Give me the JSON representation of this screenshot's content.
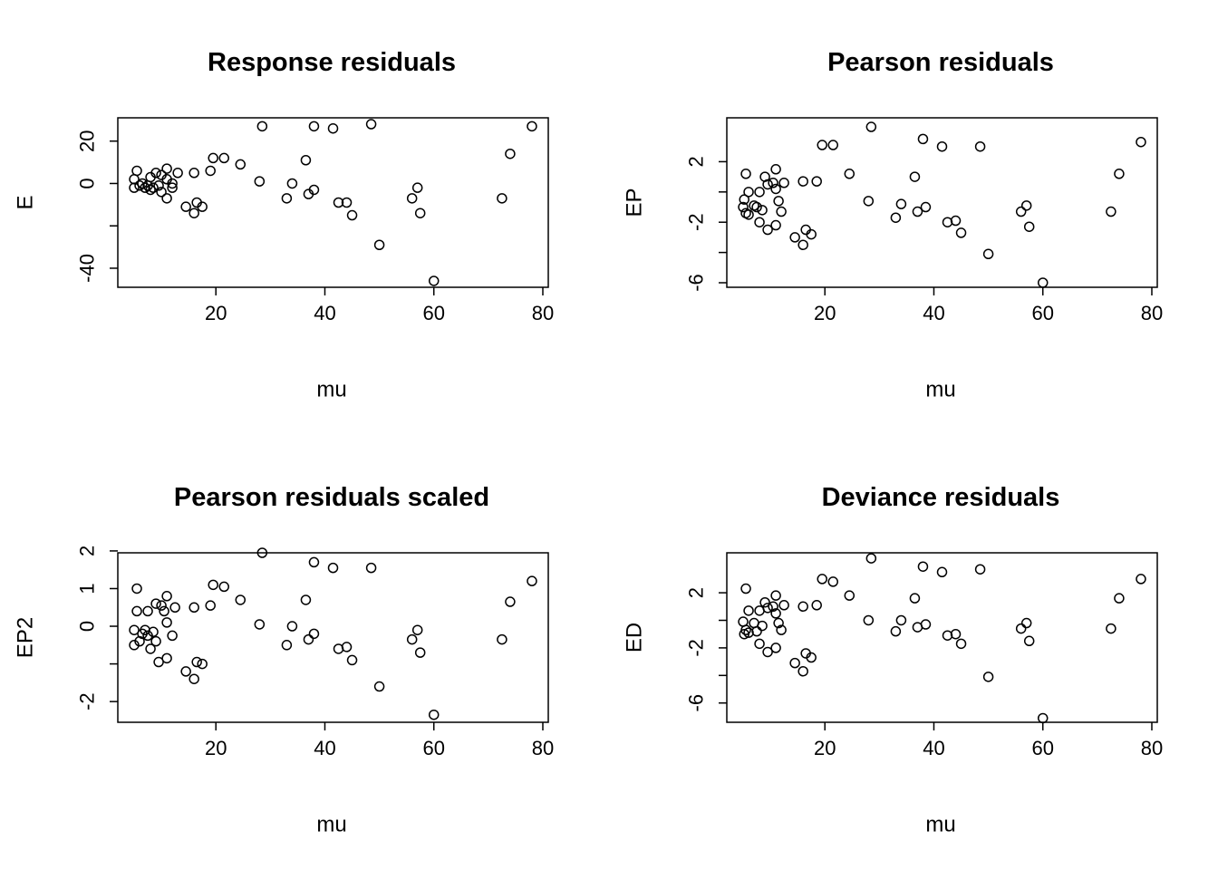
{
  "chart_data": [
    {
      "type": "scatter",
      "title": "Response residuals",
      "xlabel": "mu",
      "ylabel": "E",
      "xlim": [
        2,
        81
      ],
      "ylim": [
        -49,
        31
      ],
      "xticks": [
        20,
        40,
        60,
        80
      ],
      "yticks": [
        -40,
        -20,
        0,
        20
      ],
      "ytick_labels": [
        "-40",
        "",
        "0",
        "20"
      ],
      "points": [
        [
          5,
          -2
        ],
        [
          5.5,
          6
        ],
        [
          5,
          2
        ],
        [
          6,
          -1
        ],
        [
          6.5,
          0
        ],
        [
          7,
          -2
        ],
        [
          7.5,
          -1
        ],
        [
          8,
          3
        ],
        [
          8,
          -3
        ],
        [
          8.5,
          -2
        ],
        [
          9,
          5
        ],
        [
          9.5,
          -1
        ],
        [
          10,
          4
        ],
        [
          10,
          -4
        ],
        [
          11,
          7
        ],
        [
          11,
          2
        ],
        [
          11,
          -7
        ],
        [
          12,
          0
        ],
        [
          12,
          -2
        ],
        [
          13,
          5
        ],
        [
          14.5,
          -11
        ],
        [
          16,
          -14
        ],
        [
          16,
          5
        ],
        [
          16.5,
          -9
        ],
        [
          17.5,
          -11
        ],
        [
          19,
          6
        ],
        [
          19.5,
          12
        ],
        [
          21.5,
          12
        ],
        [
          24.5,
          9
        ],
        [
          28,
          1
        ],
        [
          28.5,
          27
        ],
        [
          33,
          -7
        ],
        [
          34,
          0
        ],
        [
          36.5,
          11
        ],
        [
          37,
          -5
        ],
        [
          38,
          27
        ],
        [
          38,
          -3
        ],
        [
          41.5,
          26
        ],
        [
          42.5,
          -9
        ],
        [
          44,
          -9
        ],
        [
          45,
          -15
        ],
        [
          48.5,
          28
        ],
        [
          50,
          -29
        ],
        [
          56,
          -7
        ],
        [
          57,
          -2
        ],
        [
          57.5,
          -14
        ],
        [
          60,
          -46
        ],
        [
          72.5,
          -7
        ],
        [
          74,
          14
        ],
        [
          78,
          27
        ]
      ]
    },
    {
      "type": "scatter",
      "title": "Pearson residuals",
      "xlabel": "mu",
      "ylabel": "EP",
      "xlim": [
        2,
        81
      ],
      "ylim": [
        -6.3,
        4.9
      ],
      "xticks": [
        20,
        40,
        60,
        80
      ],
      "yticks": [
        -6,
        -4,
        -2,
        0,
        2
      ],
      "ytick_labels": [
        "-6",
        "",
        "-2",
        "",
        "2"
      ],
      "points": [
        [
          5,
          -1
        ],
        [
          5.2,
          -0.5
        ],
        [
          5.5,
          1.2
        ],
        [
          5.5,
          -1.4
        ],
        [
          6,
          0
        ],
        [
          6,
          -1.5
        ],
        [
          7,
          -0.9
        ],
        [
          7.5,
          -1
        ],
        [
          8,
          0
        ],
        [
          8,
          -2
        ],
        [
          8.5,
          -1.2
        ],
        [
          9,
          1
        ],
        [
          9.5,
          -2.5
        ],
        [
          9.5,
          0.5
        ],
        [
          10.5,
          0.6
        ],
        [
          11,
          0.2
        ],
        [
          11,
          -2.2
        ],
        [
          11,
          1.5
        ],
        [
          11.5,
          -0.6
        ],
        [
          12,
          -1.3
        ],
        [
          12.5,
          0.6
        ],
        [
          14.5,
          -3
        ],
        [
          16,
          -3.5
        ],
        [
          16,
          0.7
        ],
        [
          16.5,
          -2.5
        ],
        [
          17.5,
          -2.8
        ],
        [
          18.5,
          0.7
        ],
        [
          19.5,
          3.1
        ],
        [
          21.5,
          3.1
        ],
        [
          24.5,
          1.2
        ],
        [
          28,
          -0.6
        ],
        [
          28.5,
          4.3
        ],
        [
          33,
          -1.7
        ],
        [
          34,
          -0.8
        ],
        [
          36.5,
          1
        ],
        [
          37,
          -1.3
        ],
        [
          38,
          3.5
        ],
        [
          38.5,
          -1
        ],
        [
          41.5,
          3
        ],
        [
          42.5,
          -2
        ],
        [
          44,
          -1.9
        ],
        [
          45,
          -2.7
        ],
        [
          48.5,
          3
        ],
        [
          50,
          -4.1
        ],
        [
          56,
          -1.3
        ],
        [
          57,
          -0.9
        ],
        [
          57.5,
          -2.3
        ],
        [
          60,
          -6
        ],
        [
          72.5,
          -1.3
        ],
        [
          74,
          1.2
        ],
        [
          78,
          3.3
        ]
      ]
    },
    {
      "type": "scatter",
      "title": "Pearson residuals scaled",
      "xlabel": "mu",
      "ylabel": "EP2",
      "xlim": [
        2,
        81
      ],
      "ylim": [
        -2.55,
        1.95
      ],
      "xticks": [
        20,
        40,
        60,
        80
      ],
      "yticks": [
        -2,
        -1,
        0,
        1,
        2
      ],
      "ytick_labels": [
        "-2",
        "",
        "0",
        "1",
        "2"
      ],
      "points": [
        [
          5,
          -0.1
        ],
        [
          5,
          -0.5
        ],
        [
          5.5,
          0.4
        ],
        [
          5.5,
          1
        ],
        [
          6,
          -0.4
        ],
        [
          6.5,
          -0.2
        ],
        [
          7,
          -0.1
        ],
        [
          7.5,
          -0.25
        ],
        [
          7.5,
          0.4
        ],
        [
          8,
          -0.6
        ],
        [
          8.5,
          -0.15
        ],
        [
          9,
          0.6
        ],
        [
          9,
          -0.4
        ],
        [
          9.5,
          -0.95
        ],
        [
          10,
          0.55
        ],
        [
          10.5,
          0.4
        ],
        [
          11,
          0.8
        ],
        [
          11,
          0.1
        ],
        [
          11,
          -0.85
        ],
        [
          12,
          -0.25
        ],
        [
          12.5,
          0.5
        ],
        [
          14.5,
          -1.2
        ],
        [
          16,
          -1.4
        ],
        [
          16,
          0.5
        ],
        [
          16.5,
          -0.95
        ],
        [
          17.5,
          -1
        ],
        [
          19,
          0.55
        ],
        [
          19.5,
          1.1
        ],
        [
          21.5,
          1.05
        ],
        [
          24.5,
          0.7
        ],
        [
          28,
          0.05
        ],
        [
          28.5,
          1.95
        ],
        [
          33,
          -0.5
        ],
        [
          34,
          0
        ],
        [
          36.5,
          0.7
        ],
        [
          37,
          -0.35
        ],
        [
          38,
          1.7
        ],
        [
          38,
          -0.2
        ],
        [
          41.5,
          1.55
        ],
        [
          42.5,
          -0.6
        ],
        [
          44,
          -0.55
        ],
        [
          45,
          -0.9
        ],
        [
          48.5,
          1.55
        ],
        [
          50,
          -1.6
        ],
        [
          56,
          -0.35
        ],
        [
          57,
          -0.1
        ],
        [
          57.5,
          -0.7
        ],
        [
          60,
          -2.35
        ],
        [
          72.5,
          -0.35
        ],
        [
          74,
          0.65
        ],
        [
          78,
          1.2
        ]
      ]
    },
    {
      "type": "scatter",
      "title": "Deviance residuals",
      "xlabel": "mu",
      "ylabel": "ED",
      "xlim": [
        2,
        81
      ],
      "ylim": [
        -7.4,
        4.9
      ],
      "xticks": [
        20,
        40,
        60,
        80
      ],
      "yticks": [
        -6,
        -4,
        -2,
        0,
        2
      ],
      "ytick_labels": [
        "-6",
        "",
        "-2",
        "",
        "2"
      ],
      "points": [
        [
          5,
          -0.1
        ],
        [
          5.2,
          -1
        ],
        [
          5.5,
          2.3
        ],
        [
          5.5,
          -0.7
        ],
        [
          6,
          0.7
        ],
        [
          6,
          -0.9
        ],
        [
          7,
          -0.2
        ],
        [
          7.5,
          -0.8
        ],
        [
          8,
          0.7
        ],
        [
          8,
          -1.7
        ],
        [
          8.5,
          -0.4
        ],
        [
          9,
          1.3
        ],
        [
          9.5,
          -2.3
        ],
        [
          9.5,
          0.9
        ],
        [
          10.5,
          1
        ],
        [
          11,
          0.5
        ],
        [
          11,
          -2
        ],
        [
          11,
          1.8
        ],
        [
          11.5,
          -0.2
        ],
        [
          12,
          -0.7
        ],
        [
          12.5,
          1.1
        ],
        [
          14.5,
          -3.1
        ],
        [
          16,
          -3.7
        ],
        [
          16,
          1
        ],
        [
          16.5,
          -2.4
        ],
        [
          17.5,
          -2.7
        ],
        [
          18.5,
          1.1
        ],
        [
          19.5,
          3
        ],
        [
          21.5,
          2.8
        ],
        [
          24.5,
          1.8
        ],
        [
          28,
          0
        ],
        [
          28.5,
          4.5
        ],
        [
          33,
          -0.8
        ],
        [
          34,
          0
        ],
        [
          36.5,
          1.6
        ],
        [
          37,
          -0.5
        ],
        [
          38,
          3.9
        ],
        [
          38.5,
          -0.3
        ],
        [
          41.5,
          3.5
        ],
        [
          42.5,
          -1.1
        ],
        [
          44,
          -1
        ],
        [
          45,
          -1.7
        ],
        [
          48.5,
          3.7
        ],
        [
          50,
          -4.1
        ],
        [
          56,
          -0.6
        ],
        [
          57,
          -0.2
        ],
        [
          57.5,
          -1.5
        ],
        [
          60,
          -7.1
        ],
        [
          72.5,
          -0.6
        ],
        [
          74,
          1.6
        ],
        [
          78,
          3
        ]
      ]
    }
  ]
}
